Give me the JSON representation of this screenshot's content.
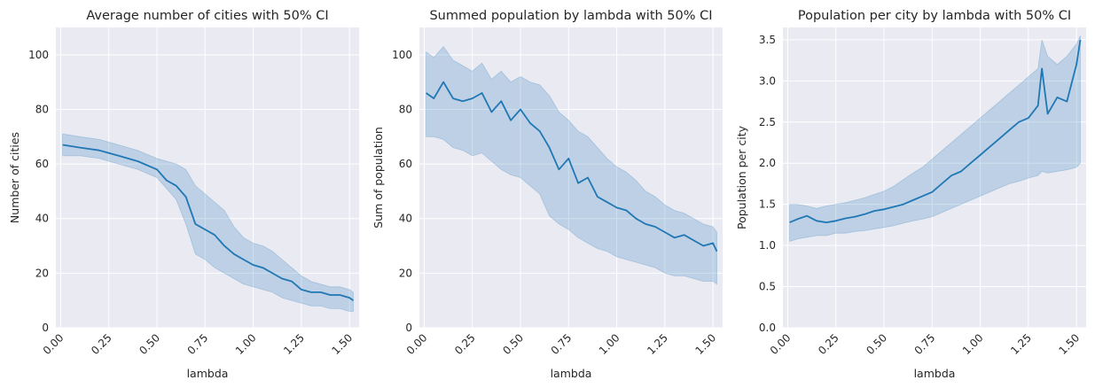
{
  "colors": {
    "line": "#1f77b4",
    "band": "#1f77b4",
    "plot_bg": "#eaeaf2",
    "grid": "#ffffff"
  },
  "chart_data": [
    {
      "type": "line",
      "title": "Average number of cities with 50% CI",
      "xlabel": "lambda",
      "ylabel": "Number of cities",
      "xlim": [
        -0.025,
        1.55
      ],
      "ylim": [
        0,
        110
      ],
      "xticks": [
        0.0,
        0.25,
        0.5,
        0.75,
        1.0,
        1.25,
        1.5
      ],
      "xtick_labels": [
        "0.00",
        "0.25",
        "0.50",
        "0.75",
        "1.00",
        "1.25",
        "1.50"
      ],
      "yticks": [
        0,
        20,
        40,
        60,
        80,
        100
      ],
      "ytick_labels": [
        "0",
        "20",
        "40",
        "60",
        "80",
        "100"
      ],
      "grid": true,
      "band": "50% CI",
      "series": [
        {
          "x": [
            0.01,
            0.1,
            0.2,
            0.3,
            0.4,
            0.5,
            0.55,
            0.6,
            0.65,
            0.7,
            0.75,
            0.8,
            0.85,
            0.9,
            0.95,
            1.0,
            1.05,
            1.1,
            1.15,
            1.2,
            1.25,
            1.3,
            1.35,
            1.4,
            1.45,
            1.5,
            1.52
          ],
          "y": [
            67,
            66,
            65,
            63,
            61,
            58,
            54,
            52,
            48,
            38,
            36,
            34,
            30,
            27,
            25,
            23,
            22,
            20,
            18,
            17,
            14,
            13,
            13,
            12,
            12,
            11,
            10
          ],
          "lower": [
            63,
            63,
            62,
            60,
            58,
            55,
            51,
            47,
            38,
            27,
            25,
            22,
            20,
            18,
            16,
            15,
            14,
            13,
            11,
            10,
            9,
            8,
            8,
            7,
            7,
            6,
            6
          ],
          "upper": [
            71,
            70,
            69,
            67,
            65,
            62,
            61,
            60,
            58,
            52,
            49,
            46,
            43,
            37,
            33,
            31,
            30,
            28,
            25,
            22,
            19,
            17,
            16,
            15,
            15,
            14,
            13
          ]
        }
      ]
    },
    {
      "type": "line",
      "title": "Summed population by lambda with 50% CI",
      "xlabel": "lambda",
      "ylabel": "Sum of population",
      "xlim": [
        -0.025,
        1.55
      ],
      "ylim": [
        0,
        110
      ],
      "xticks": [
        0.0,
        0.25,
        0.5,
        0.75,
        1.0,
        1.25,
        1.5
      ],
      "xtick_labels": [
        "0.00",
        "0.25",
        "0.50",
        "0.75",
        "1.00",
        "1.25",
        "1.50"
      ],
      "yticks": [
        0,
        20,
        40,
        60,
        80,
        100
      ],
      "ytick_labels": [
        "0",
        "20",
        "40",
        "60",
        "80",
        "100"
      ],
      "grid": true,
      "band": "50% CI",
      "series": [
        {
          "x": [
            0.01,
            0.05,
            0.1,
            0.15,
            0.2,
            0.25,
            0.3,
            0.35,
            0.4,
            0.45,
            0.5,
            0.55,
            0.6,
            0.65,
            0.7,
            0.75,
            0.8,
            0.85,
            0.9,
            0.95,
            1.0,
            1.05,
            1.1,
            1.15,
            1.2,
            1.25,
            1.3,
            1.35,
            1.4,
            1.45,
            1.5,
            1.52
          ],
          "y": [
            86,
            84,
            90,
            84,
            83,
            84,
            86,
            79,
            83,
            76,
            80,
            75,
            72,
            66,
            58,
            62,
            53,
            55,
            48,
            46,
            44,
            43,
            40,
            38,
            37,
            35,
            33,
            34,
            32,
            30,
            31,
            28
          ],
          "lower": [
            70,
            70,
            69,
            66,
            65,
            63,
            64,
            61,
            58,
            56,
            55,
            52,
            49,
            41,
            38,
            36,
            33,
            31,
            29,
            28,
            26,
            25,
            24,
            23,
            22,
            20,
            19,
            19,
            18,
            17,
            17,
            16
          ],
          "upper": [
            101,
            99,
            103,
            98,
            96,
            94,
            97,
            91,
            94,
            90,
            92,
            90,
            89,
            85,
            79,
            76,
            72,
            70,
            66,
            62,
            59,
            57,
            54,
            50,
            48,
            45,
            43,
            42,
            40,
            38,
            37,
            35
          ]
        }
      ]
    },
    {
      "type": "line",
      "title": "Population per city by lambda with 50% CI",
      "xlabel": "lambda",
      "ylabel": "Population per city",
      "xlim": [
        -0.025,
        1.55
      ],
      "ylim": [
        0,
        3.65
      ],
      "xticks": [
        0.0,
        0.25,
        0.5,
        0.75,
        1.0,
        1.25,
        1.5
      ],
      "xtick_labels": [
        "0.00",
        "0.25",
        "0.50",
        "0.75",
        "1.00",
        "1.25",
        "1.50"
      ],
      "yticks": [
        0,
        0.5,
        1.0,
        1.5,
        2.0,
        2.5,
        3.0,
        3.5
      ],
      "ytick_labels": [
        "0.0",
        "0.5",
        "1.0",
        "1.5",
        "2.0",
        "2.5",
        "3.0",
        "3.5"
      ],
      "grid": true,
      "band": "50% CI",
      "series": [
        {
          "x": [
            0.01,
            0.05,
            0.1,
            0.15,
            0.2,
            0.25,
            0.3,
            0.35,
            0.4,
            0.45,
            0.5,
            0.55,
            0.6,
            0.65,
            0.7,
            0.75,
            0.8,
            0.85,
            0.9,
            0.95,
            1.0,
            1.05,
            1.1,
            1.15,
            1.2,
            1.25,
            1.3,
            1.32,
            1.35,
            1.4,
            1.45,
            1.5,
            1.52
          ],
          "y": [
            1.28,
            1.32,
            1.36,
            1.3,
            1.28,
            1.3,
            1.33,
            1.35,
            1.38,
            1.42,
            1.44,
            1.47,
            1.5,
            1.55,
            1.6,
            1.65,
            1.75,
            1.85,
            1.9,
            2.0,
            2.1,
            2.2,
            2.3,
            2.4,
            2.5,
            2.55,
            2.7,
            3.15,
            2.6,
            2.8,
            2.75,
            3.2,
            3.5
          ],
          "lower": [
            1.05,
            1.08,
            1.1,
            1.12,
            1.12,
            1.15,
            1.15,
            1.17,
            1.18,
            1.2,
            1.22,
            1.24,
            1.27,
            1.3,
            1.32,
            1.35,
            1.4,
            1.45,
            1.5,
            1.55,
            1.6,
            1.65,
            1.7,
            1.75,
            1.78,
            1.82,
            1.85,
            1.9,
            1.88,
            1.9,
            1.92,
            1.95,
            2.0
          ],
          "upper": [
            1.5,
            1.5,
            1.48,
            1.45,
            1.48,
            1.5,
            1.52,
            1.55,
            1.58,
            1.62,
            1.66,
            1.72,
            1.8,
            1.88,
            1.95,
            2.05,
            2.15,
            2.25,
            2.35,
            2.45,
            2.55,
            2.65,
            2.75,
            2.85,
            2.95,
            3.05,
            3.15,
            3.5,
            3.3,
            3.2,
            3.3,
            3.45,
            3.55
          ]
        }
      ]
    }
  ]
}
